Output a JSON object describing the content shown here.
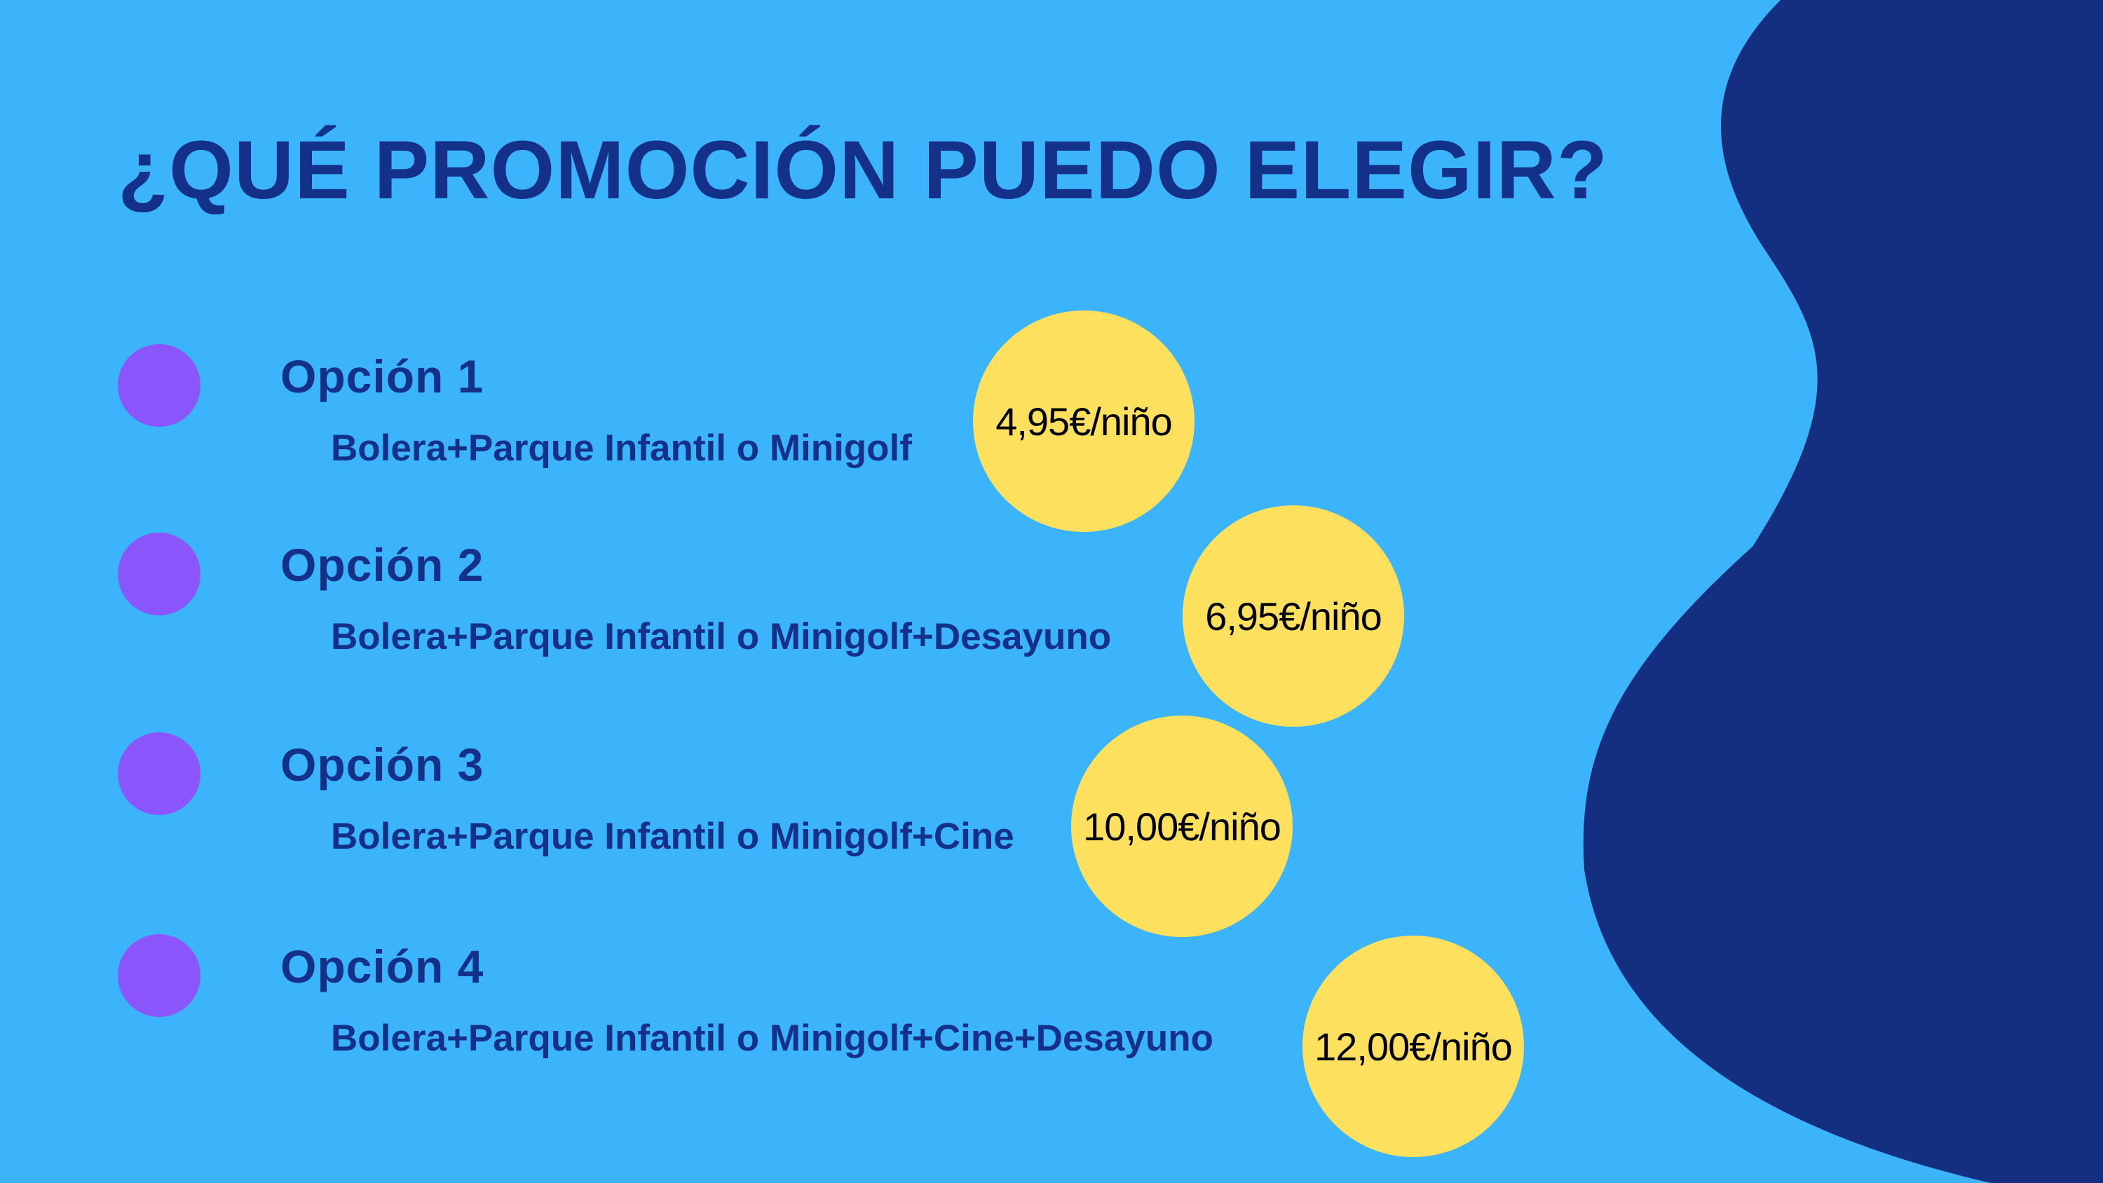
{
  "title": "¿QUÉ PROMOCIÓN PUEDO ELEGIR?",
  "colors": {
    "background": "#3bb4fb",
    "blob": "#142f80",
    "heading": "#14318a",
    "bullet": "#8a56fb",
    "price_badge": "#fde05e"
  },
  "options": [
    {
      "label": "Opción 1",
      "description": "Bolera+Parque Infantil o Minigolf",
      "price": "4,95€/niño"
    },
    {
      "label": "Opción 2",
      "description": "Bolera+Parque Infantil o Minigolf+Desayuno",
      "price": "6,95€/niño"
    },
    {
      "label": "Opción 3",
      "description": "Bolera+Parque Infantil o Minigolf+Cine",
      "price": "10,00€/niño"
    },
    {
      "label": "Opción 4",
      "description": "Bolera+Parque Infantil o Minigolf+Cine+Desayuno",
      "price": "12,00€/niño"
    }
  ]
}
